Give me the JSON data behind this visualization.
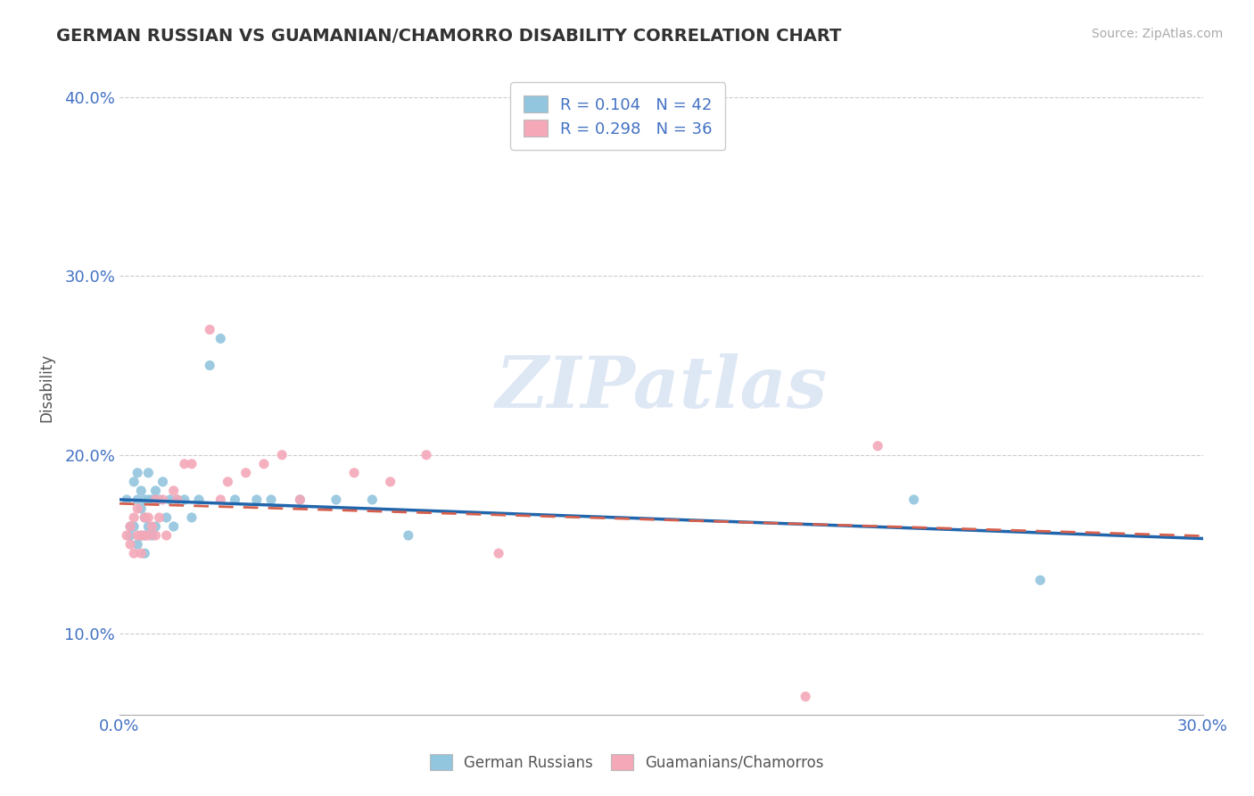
{
  "title": "GERMAN RUSSIAN VS GUAMANIAN/CHAMORRO DISABILITY CORRELATION CHART",
  "source": "Source: ZipAtlas.com",
  "ylabel_label": "Disability",
  "x_min": 0.0,
  "x_max": 0.3,
  "y_min": 0.055,
  "y_max": 0.42,
  "y_ticks": [
    0.1,
    0.2,
    0.3,
    0.4
  ],
  "y_tick_labels": [
    "10.0%",
    "20.0%",
    "30.0%",
    "40.0%"
  ],
  "blue_R": "0.104",
  "blue_N": "42",
  "pink_R": "0.298",
  "pink_N": "36",
  "blue_color": "#92c5de",
  "pink_color": "#f4a8b8",
  "blue_line_color": "#2166ac",
  "pink_line_color": "#d6604d",
  "watermark": "ZIPatlas",
  "legend_label_blue": "German Russians",
  "legend_label_pink": "Guamanians/Chamorros",
  "blue_points_x": [
    0.002,
    0.003,
    0.003,
    0.004,
    0.004,
    0.005,
    0.005,
    0.005,
    0.006,
    0.006,
    0.006,
    0.007,
    0.007,
    0.007,
    0.007,
    0.008,
    0.008,
    0.008,
    0.009,
    0.009,
    0.01,
    0.01,
    0.011,
    0.012,
    0.013,
    0.014,
    0.015,
    0.016,
    0.018,
    0.02,
    0.022,
    0.025,
    0.028,
    0.032,
    0.038,
    0.042,
    0.05,
    0.06,
    0.07,
    0.08,
    0.22,
    0.255
  ],
  "blue_points_y": [
    0.175,
    0.16,
    0.155,
    0.185,
    0.16,
    0.175,
    0.19,
    0.15,
    0.17,
    0.155,
    0.18,
    0.165,
    0.155,
    0.145,
    0.175,
    0.16,
    0.175,
    0.19,
    0.155,
    0.175,
    0.16,
    0.18,
    0.175,
    0.185,
    0.165,
    0.175,
    0.16,
    0.175,
    0.175,
    0.165,
    0.175,
    0.25,
    0.265,
    0.175,
    0.175,
    0.175,
    0.175,
    0.175,
    0.175,
    0.155,
    0.175,
    0.13
  ],
  "pink_points_x": [
    0.002,
    0.003,
    0.003,
    0.004,
    0.004,
    0.005,
    0.005,
    0.006,
    0.006,
    0.007,
    0.007,
    0.008,
    0.008,
    0.009,
    0.01,
    0.01,
    0.011,
    0.012,
    0.013,
    0.015,
    0.016,
    0.018,
    0.02,
    0.025,
    0.028,
    0.03,
    0.035,
    0.04,
    0.045,
    0.05,
    0.065,
    0.075,
    0.085,
    0.105,
    0.19,
    0.21
  ],
  "pink_points_y": [
    0.155,
    0.15,
    0.16,
    0.145,
    0.165,
    0.17,
    0.155,
    0.155,
    0.145,
    0.165,
    0.155,
    0.155,
    0.165,
    0.16,
    0.155,
    0.175,
    0.165,
    0.175,
    0.155,
    0.18,
    0.175,
    0.195,
    0.195,
    0.27,
    0.175,
    0.185,
    0.19,
    0.195,
    0.2,
    0.175,
    0.19,
    0.185,
    0.2,
    0.145,
    0.065,
    0.205
  ]
}
